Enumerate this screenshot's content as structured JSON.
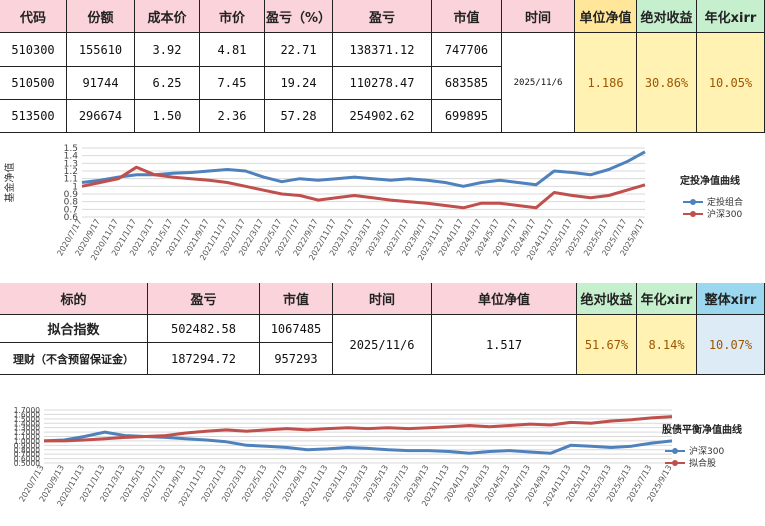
{
  "summary_table": {
    "headers": [
      "代码",
      "份额",
      "成本价",
      "市价",
      "盈亏（%）",
      "盈亏",
      "市值",
      "时间",
      "单位净值",
      "绝对收益",
      "年化xirr"
    ],
    "rows": [
      [
        "510300",
        "155610",
        "3.92",
        "4.81",
        "22.71",
        "138371.12",
        "747706"
      ],
      [
        "510500",
        "91744",
        "6.25",
        "7.45",
        "19.24",
        "110278.47",
        "683585"
      ],
      [
        "513500",
        "296674",
        "1.50",
        "2.36",
        "57.28",
        "254902.62",
        "699895"
      ]
    ],
    "date": "2025/11/6",
    "unit_nav": "1.186",
    "absolute_return": "30.86%",
    "annualized_xirr": "10.05%"
  },
  "fit_table": {
    "headers": [
      "标的",
      "盈亏",
      "市值",
      "时间",
      "单位净值",
      "绝对收益",
      "年化xirr",
      "整体xirr"
    ],
    "rows": [
      [
        "拟合指数",
        "502482.58",
        "1067485"
      ],
      [
        "理财（不含预留保证金）",
        "187294.72",
        "957293"
      ]
    ],
    "date": "2025/11/6",
    "unit_nav": "1.517",
    "absolute_return": "51.67%",
    "annualized_xirr": "8.14%",
    "overall_xirr": "10.07%"
  },
  "chart_data": [
    {
      "type": "line",
      "ylabel": "基金净值",
      "legend_title": "定投净值曲线",
      "legend": "right",
      "grid": true,
      "categories": [
        "2020/7/17",
        "2020/9/17",
        "2020/11/17",
        "2021/1/17",
        "2021/3/17",
        "2021/5/17",
        "2021/7/17",
        "2021/9/17",
        "2021/11/17",
        "2022/1/17",
        "2022/3/17",
        "2022/5/17",
        "2022/7/17",
        "2022/9/17",
        "2022/11/17",
        "2023/1/17",
        "2023/3/17",
        "2023/5/17",
        "2023/7/17",
        "2023/9/17",
        "2023/11/17",
        "2024/1/17",
        "2024/3/17",
        "2024/5/17",
        "2024/7/17",
        "2024/9/17",
        "2024/11/17",
        "2025/1/17",
        "2025/3/17",
        "2025/5/17",
        "2025/7/17",
        "2025/9/17"
      ],
      "series": [
        {
          "name": "定投组合",
          "color": "#4f81bd",
          "values": [
            1.05,
            1.08,
            1.12,
            1.15,
            1.15,
            1.17,
            1.18,
            1.2,
            1.22,
            1.2,
            1.12,
            1.06,
            1.1,
            1.08,
            1.1,
            1.12,
            1.1,
            1.08,
            1.1,
            1.08,
            1.05,
            1.0,
            1.05,
            1.08,
            1.05,
            1.02,
            1.2,
            1.18,
            1.15,
            1.22,
            1.32,
            1.45
          ]
        },
        {
          "name": "沪深300",
          "color": "#c0504d",
          "values": [
            1.0,
            1.05,
            1.1,
            1.25,
            1.15,
            1.12,
            1.1,
            1.08,
            1.05,
            1.0,
            0.95,
            0.9,
            0.88,
            0.82,
            0.85,
            0.88,
            0.85,
            0.82,
            0.8,
            0.78,
            0.75,
            0.72,
            0.78,
            0.78,
            0.75,
            0.72,
            0.92,
            0.88,
            0.85,
            0.88,
            0.95,
            1.02
          ]
        }
      ],
      "ylim": [
        0.6,
        1.5
      ],
      "yticks": [
        0.6,
        0.7,
        0.8,
        0.9,
        1,
        1.1,
        1.2,
        1.3,
        1.4,
        1.5
      ]
    },
    {
      "type": "line",
      "legend_title": "股债平衡净值曲线",
      "legend": "right",
      "grid": true,
      "categories": [
        "2020/7/13",
        "2020/9/13",
        "2020/11/13",
        "2021/1/13",
        "2021/3/13",
        "2021/5/13",
        "2021/7/13",
        "2021/9/13",
        "2021/11/13",
        "2022/1/13",
        "2022/3/13",
        "2022/5/13",
        "2022/7/13",
        "2022/9/13",
        "2022/11/13",
        "2023/1/13",
        "2023/3/13",
        "2023/5/13",
        "2023/7/13",
        "2023/9/13",
        "2023/11/13",
        "2024/1/13",
        "2024/3/13",
        "2024/5/13",
        "2024/7/13",
        "2024/9/13",
        "2024/11/13",
        "2025/1/13",
        "2025/3/13",
        "2025/5/13",
        "2025/7/13",
        "2025/9/13"
      ],
      "series": [
        {
          "name": "沪深300",
          "color": "#4f81bd",
          "values": [
            1.0,
            1.02,
            1.1,
            1.2,
            1.12,
            1.1,
            1.08,
            1.05,
            1.02,
            0.98,
            0.9,
            0.88,
            0.85,
            0.8,
            0.82,
            0.85,
            0.83,
            0.8,
            0.78,
            0.78,
            0.76,
            0.72,
            0.76,
            0.78,
            0.75,
            0.72,
            0.9,
            0.88,
            0.85,
            0.88,
            0.95,
            1.0
          ]
        },
        {
          "name": "拟合股",
          "color": "#c0504d",
          "values": [
            1.0,
            1.0,
            1.02,
            1.05,
            1.08,
            1.1,
            1.12,
            1.18,
            1.22,
            1.25,
            1.22,
            1.25,
            1.28,
            1.25,
            1.28,
            1.3,
            1.28,
            1.3,
            1.28,
            1.3,
            1.32,
            1.35,
            1.32,
            1.35,
            1.38,
            1.36,
            1.42,
            1.4,
            1.45,
            1.48,
            1.52,
            1.55
          ]
        }
      ],
      "ylim": [
        0.5,
        1.7
      ],
      "yticks": [
        {
          "value": 0.5,
          "label": "0.5000"
        },
        {
          "value": 0.6,
          "label": "0.6000"
        },
        {
          "value": 0.7,
          "label": "0.7000"
        },
        {
          "value": 0.8,
          "label": "0.8000"
        },
        {
          "value": 0.9,
          "label": "0.9000"
        },
        {
          "value": 1.0,
          "label": "1.0000"
        },
        {
          "value": 1.1,
          "label": "1.1000"
        },
        {
          "value": 1.2,
          "label": "1.2000"
        },
        {
          "value": 1.3,
          "label": "1.3000"
        },
        {
          "value": 1.4,
          "label": "1.4000"
        },
        {
          "value": 1.5,
          "label": "1.5000"
        },
        {
          "value": 1.6,
          "label": "1.6000"
        },
        {
          "value": 1.7,
          "label": "1.7000"
        }
      ]
    }
  ]
}
